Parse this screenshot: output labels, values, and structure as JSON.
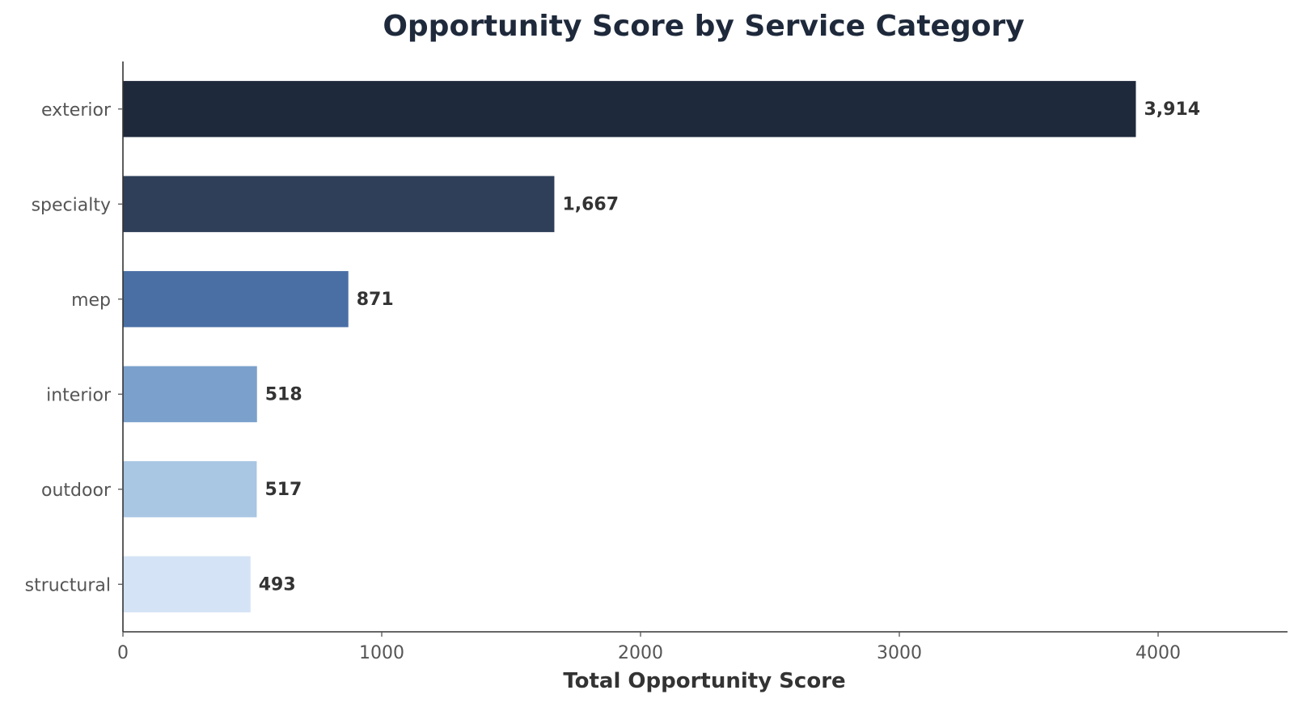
{
  "chart_data": {
    "type": "bar",
    "orientation": "horizontal",
    "title": "Opportunity Score by Service Category",
    "xlabel": "Total Opportunity Score",
    "ylabel": "",
    "categories": [
      "exterior",
      "specialty",
      "mep",
      "interior",
      "outdoor",
      "structural"
    ],
    "values": [
      3914,
      1667,
      871,
      518,
      517,
      493
    ],
    "value_labels": [
      "3,914",
      "1,667",
      "871",
      "518",
      "517",
      "493"
    ],
    "colors": [
      "#1e293b",
      "#2f3f59",
      "#4a6fa5",
      "#7ba0cc",
      "#a9c6e3",
      "#d4e3f5"
    ],
    "xlim": [
      0,
      4500
    ],
    "xticks": [
      0,
      1000,
      2000,
      3000,
      4000
    ],
    "xtick_labels": [
      "0",
      "1000",
      "2000",
      "3000",
      "4000"
    ],
    "grid": false,
    "legend": "none"
  }
}
